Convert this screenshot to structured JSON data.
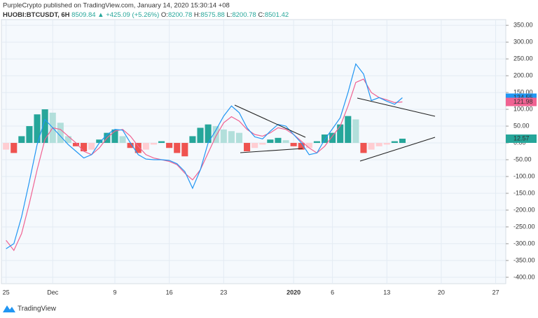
{
  "chart_data": {
    "type": "macd",
    "title": "PurpleCrypto published on TradingView.com, January 14, 2020 15:30:14 +08",
    "symbol": "HUOBI:BTCUSDT, 6H",
    "price": "8509.84",
    "change": "▲ +425.09 (+5.26%)",
    "ohlc": [
      {
        "label": "O:",
        "value": "8200.78"
      },
      {
        "label": "H:",
        "value": "8575.88"
      },
      {
        "label": "L:",
        "value": "8200.78"
      },
      {
        "label": "C:",
        "value": "8501.42"
      }
    ],
    "x": [
      0,
      1,
      2,
      3,
      4,
      5,
      6,
      7,
      8,
      9,
      10,
      11,
      12,
      13,
      14,
      15,
      16,
      17,
      18,
      19,
      20,
      21,
      22,
      23,
      24,
      25,
      26,
      27,
      28,
      29,
      30,
      31,
      32,
      33,
      34,
      35,
      36,
      37,
      38,
      39,
      40,
      41,
      42,
      43,
      44,
      45,
      46,
      47,
      48,
      49,
      50,
      51
    ],
    "lines": [
      {
        "color": "#2196f3",
        "values": [
          -315,
          -300,
          -220,
          -115,
          -5,
          70,
          45,
          20,
          -5,
          -25,
          -45,
          -35,
          0,
          25,
          40,
          38,
          0,
          -35,
          -48,
          -50,
          -50,
          -52,
          -62,
          -85,
          -135,
          -80,
          0,
          38,
          80,
          110,
          90,
          45,
          18,
          12,
          35,
          55,
          50,
          25,
          0,
          -35,
          -30,
          10,
          42,
          75,
          150,
          235,
          205,
          126,
          135,
          124,
          115,
          134.55
        ]
      },
      {
        "color": "#f06292",
        "values": [
          -290,
          -320,
          -270,
          -180,
          -80,
          10,
          45,
          40,
          20,
          0,
          -25,
          -35,
          -15,
          15,
          35,
          40,
          20,
          -10,
          -35,
          -45,
          -50,
          -55,
          -65,
          -90,
          -110,
          -80,
          -30,
          20,
          60,
          78,
          65,
          40,
          25,
          20,
          30,
          45,
          40,
          25,
          5,
          -15,
          -30,
          -10,
          20,
          50,
          110,
          180,
          190,
          150,
          135,
          128,
          120,
          121.98
        ]
      }
    ],
    "histogram": {
      "colors": {
        "up_rising": "#26a69a",
        "up_falling": "#b2dfdb",
        "down_falling": "#ef5350",
        "down_rising": "#ffcdd2"
      },
      "values": [
        -20,
        -30,
        20,
        50,
        85,
        100,
        90,
        60,
        20,
        -10,
        -25,
        -20,
        10,
        30,
        40,
        20,
        -15,
        -30,
        -20,
        -5,
        5,
        -15,
        -30,
        -40,
        20,
        45,
        55,
        50,
        40,
        35,
        30,
        -25,
        -15,
        -5,
        10,
        15,
        8,
        -10,
        -20,
        -15,
        5,
        25,
        30,
        55,
        80,
        70,
        -30,
        -20,
        -10,
        -5,
        5,
        12.57
      ]
    },
    "xlim": [
      -0.6,
      64.3
    ],
    "xticks": [
      {
        "value": 0,
        "label": "25"
      },
      {
        "value": 6,
        "label": "Dec"
      },
      {
        "value": 14,
        "label": "9"
      },
      {
        "value": 21,
        "label": "16"
      },
      {
        "value": 28,
        "label": "23"
      },
      {
        "value": 37,
        "label": "2020"
      },
      {
        "value": 42,
        "label": "6"
      },
      {
        "value": 49,
        "label": "13"
      },
      {
        "value": 56,
        "label": "20"
      },
      {
        "value": 63,
        "label": "27"
      }
    ],
    "ylim": [
      -419,
      367
    ],
    "yticks": [
      {
        "value": 350,
        "label": "350.00"
      },
      {
        "value": 300,
        "label": "300.00"
      },
      {
        "value": 250,
        "label": "250.00"
      },
      {
        "value": 200,
        "label": "200.00"
      },
      {
        "value": 150,
        "label": "150.00"
      },
      {
        "value": 100,
        "label": "100.00"
      },
      {
        "value": 50,
        "label": "50.00"
      },
      {
        "value": 0,
        "label": "0.00"
      },
      {
        "value": -50,
        "label": "-50.00"
      },
      {
        "value": -100,
        "label": "-100.00"
      },
      {
        "value": -150,
        "label": "-150.00"
      },
      {
        "value": -200,
        "label": "-200.00"
      },
      {
        "value": -250,
        "label": "-250.00"
      },
      {
        "value": -300,
        "label": "-300.00"
      },
      {
        "value": -350,
        "label": "-350.00"
      },
      {
        "value": -400,
        "label": "-400.00"
      }
    ],
    "grid": true
  },
  "footer": "TradingView"
}
